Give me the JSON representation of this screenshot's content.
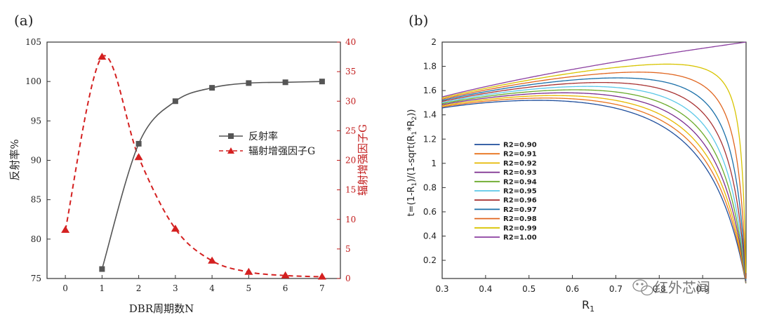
{
  "colors": {
    "reflect": "#555555",
    "enhance": "#d42020",
    "right_axis": "#c21a1a",
    "frame": "#333333",
    "series": [
      "#1f4e9c",
      "#e8731e",
      "#e6b800",
      "#7b2d8e",
      "#6aaa2a",
      "#5bc8e8",
      "#a83232",
      "#1a6fa8",
      "#e0651f",
      "#d8c400",
      "#8b3fa0"
    ]
  },
  "watermark": {
    "text": "红外芯闻",
    "icon": "wechat-icon"
  },
  "chart_data": [
    {
      "type": "line",
      "panel_label": "(a)",
      "title": "",
      "xlabel": "DBR周期数N",
      "ylabel": "反射率%",
      "ylabel_right": "辐射增强因子G",
      "xlim": [
        -0.5,
        7.5
      ],
      "ylim": [
        75,
        105
      ],
      "ylim_right": [
        0,
        40
      ],
      "xticks": [
        "0",
        "1",
        "2",
        "3",
        "4",
        "5",
        "6",
        "7"
      ],
      "yticks": [
        "75",
        "80",
        "85",
        "90",
        "95",
        "100",
        "105"
      ],
      "yticks_right": [
        "0",
        "5",
        "10",
        "15",
        "20",
        "25",
        "30",
        "35",
        "40"
      ],
      "legend_position": "center-right",
      "series": [
        {
          "name": "反射率",
          "axis": "left",
          "style": "solid",
          "marker": "square",
          "x": [
            1,
            2,
            3,
            4,
            5,
            6,
            7
          ],
          "values": [
            76.2,
            92.1,
            97.5,
            99.2,
            99.8,
            99.9,
            100.0
          ]
        },
        {
          "name": "辐射增强因子G",
          "axis": "right",
          "style": "dashed",
          "marker": "triangle",
          "x": [
            0,
            1,
            2,
            3,
            4,
            5,
            6,
            7
          ],
          "values": [
            8.2,
            37.5,
            20.5,
            8.4,
            3.0,
            1.1,
            0.5,
            0.3
          ]
        }
      ]
    },
    {
      "type": "line",
      "panel_label": "(b)",
      "title": "",
      "xlabel": "R1",
      "ylabel": "t=(1-R1)/(1-sqrt(R1*R2))",
      "xlim": [
        0.3,
        1.0
      ],
      "ylim": [
        0.05,
        2.0
      ],
      "xticks": [
        "0.3",
        "0.4",
        "0.5",
        "0.6",
        "0.7",
        "0.8",
        "0.9"
      ],
      "yticks": [
        "0.2",
        "0.4",
        "0.6",
        "0.8",
        "1",
        "1.2",
        "1.4",
        "1.6",
        "1.8",
        "2"
      ],
      "legend_position": "center-left",
      "series_r2": [
        0.9,
        0.91,
        0.92,
        0.93,
        0.94,
        0.95,
        0.96,
        0.97,
        0.98,
        0.99,
        1.0
      ],
      "legend": [
        "R2=0.90",
        "R2=0.91",
        "R2=0.92",
        "R2=0.93",
        "R2=0.94",
        "R2=0.95",
        "R2=0.96",
        "R2=0.97",
        "R2=0.98",
        "R2=0.99",
        "R2=1.00"
      ]
    }
  ]
}
